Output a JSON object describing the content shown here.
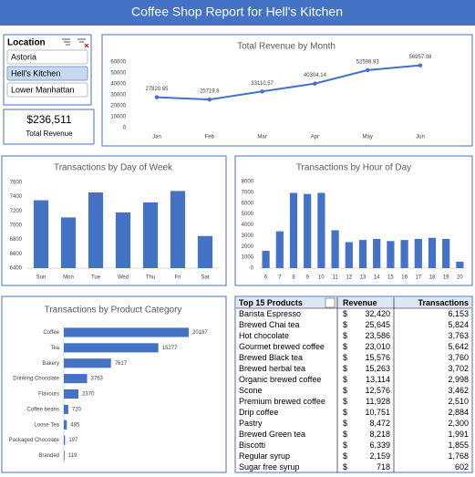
{
  "header": {
    "title": "Coffee Shop Report for Hell's Kitchen"
  },
  "slicer": {
    "title": "Location",
    "items": [
      "Astoria",
      "Hell's Kitchen",
      "Lower Manhattan"
    ],
    "selected": 1
  },
  "kpi": {
    "value": "$236,511",
    "label": "Total Revenue"
  },
  "chart_data": [
    {
      "type": "line",
      "title": "Total Revenue by Month",
      "categories": [
        "Jan",
        "Feb",
        "Mar",
        "Apr",
        "May",
        "Jun"
      ],
      "values": [
        27820.65,
        25719.8,
        33110.57,
        40304.14,
        52598.93,
        56957.08
      ],
      "color": "#4472c4",
      "ylim": [
        0,
        60000
      ],
      "yticks": [
        0,
        10000,
        20000,
        30000,
        40000,
        50000,
        60000
      ]
    },
    {
      "type": "bar",
      "title": "Transactions by Day of Week",
      "categories": [
        "Sun",
        "Mon",
        "Tue",
        "Wed",
        "Thu",
        "Fri",
        "Sat"
      ],
      "values": [
        7350,
        7110,
        7460,
        7180,
        7320,
        7480,
        6850
      ],
      "color": "#4472c4",
      "ylim": [
        6400,
        7600
      ],
      "yticks": [
        6400,
        6600,
        6800,
        7000,
        7200,
        7400,
        7600
      ]
    },
    {
      "type": "bar",
      "title": "Transactions by Hour of Day",
      "categories": [
        6,
        7,
        8,
        9,
        10,
        11,
        12,
        13,
        14,
        15,
        16,
        17,
        18,
        19,
        20
      ],
      "values": [
        1600,
        3400,
        6950,
        6850,
        6950,
        3500,
        2400,
        2600,
        2700,
        2500,
        2600,
        2700,
        2800,
        2700,
        600
      ],
      "color": "#4472c4",
      "ylim": [
        0,
        8000
      ],
      "yticks": [
        0,
        1000,
        2000,
        3000,
        4000,
        5000,
        6000,
        7000,
        8000
      ]
    },
    {
      "type": "bar",
      "orientation": "horizontal",
      "title": "Transactions by Product Category",
      "categories": [
        "Coffee",
        "Tea",
        "Bakery",
        "Drinking Chocolate",
        "Flavours",
        "Coffee beans",
        "Loose Tea",
        "Packaged Chocolate",
        "Branded"
      ],
      "values": [
        20187,
        15277,
        7617,
        3763,
        2370,
        720,
        485,
        197,
        119
      ],
      "color": "#4472c4"
    }
  ],
  "table": {
    "columns": [
      "Top 15 Products",
      "Revenue",
      "Transactions"
    ],
    "currency": "$",
    "rows": [
      [
        "Barista Espresso",
        "32,420",
        "6,153"
      ],
      [
        "Brewed Chai tea",
        "25,645",
        "5,824"
      ],
      [
        "Hot chocolate",
        "23,586",
        "3,763"
      ],
      [
        "Gourmet brewed coffee",
        "23,010",
        "5,642"
      ],
      [
        "Brewed Black tea",
        "15,576",
        "3,760"
      ],
      [
        "Brewed herbal tea",
        "15,263",
        "3,702"
      ],
      [
        "Organic brewed coffee",
        "13,114",
        "2,998"
      ],
      [
        "Scone",
        "12,576",
        "3,462"
      ],
      [
        "Premium brewed coffee",
        "11,928",
        "2,510"
      ],
      [
        "Drip coffee",
        "10,751",
        "2,884"
      ],
      [
        "Pastry",
        "8,472",
        "2,300"
      ],
      [
        "Brewed Green tea",
        "8,218",
        "1,991"
      ],
      [
        "Biscotti",
        "6,339",
        "1,855"
      ],
      [
        "Regular syrup",
        "2,159",
        "1,768"
      ],
      [
        "Sugar free syrup",
        "718",
        "602"
      ]
    ]
  }
}
